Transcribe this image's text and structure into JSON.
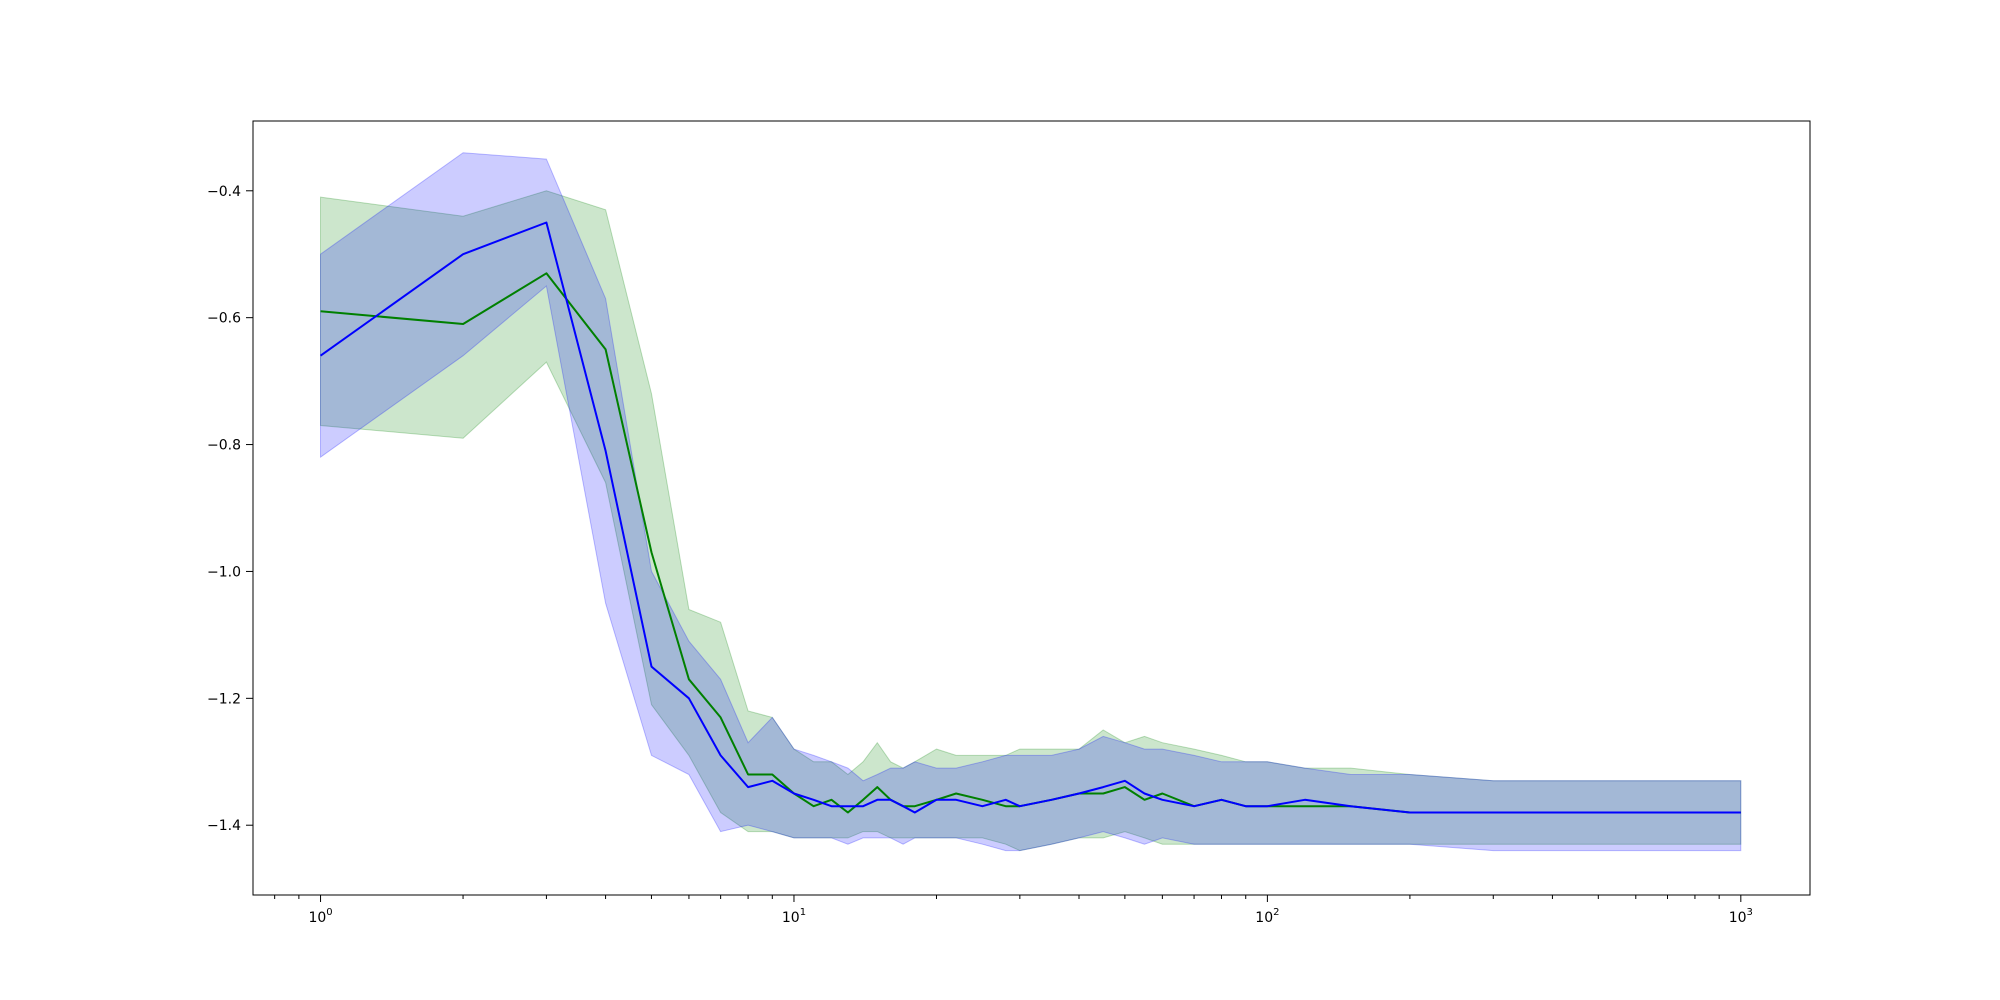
{
  "chart_data": {
    "type": "line",
    "title": "",
    "xlabel": "",
    "ylabel": "",
    "xscale": "log",
    "xlim": [
      0.72,
      1400
    ],
    "ylim": [
      -1.51,
      -0.29
    ],
    "grid": false,
    "legend": "none",
    "x_ticks": [
      {
        "base": "10",
        "exp": "0",
        "value": 1
      },
      {
        "base": "10",
        "exp": "1",
        "value": 10
      },
      {
        "base": "10",
        "exp": "2",
        "value": 100
      },
      {
        "base": "10",
        "exp": "3",
        "value": 1000
      }
    ],
    "y_ticks": [
      {
        "label": "−0.4",
        "value": -0.4
      },
      {
        "label": "−0.6",
        "value": -0.6
      },
      {
        "label": "−0.8",
        "value": -0.8
      },
      {
        "label": "−1.0",
        "value": -1.0
      },
      {
        "label": "−1.2",
        "value": -1.2
      },
      {
        "label": "−1.4",
        "value": -1.4
      }
    ],
    "series": [
      {
        "color": "#008000",
        "band_color": "#008000",
        "band_opacity": 0.2,
        "x": [
          1,
          2,
          3,
          4,
          5,
          6,
          7,
          8,
          9,
          10,
          11,
          12,
          13,
          14,
          15,
          16,
          17,
          18,
          20,
          22,
          25,
          28,
          30,
          35,
          40,
          45,
          50,
          55,
          60,
          70,
          80,
          90,
          100,
          120,
          150,
          200,
          300,
          500,
          700,
          1000
        ],
        "mean": [
          -0.59,
          -0.61,
          -0.53,
          -0.65,
          -0.97,
          -1.17,
          -1.23,
          -1.32,
          -1.32,
          -1.35,
          -1.37,
          -1.36,
          -1.38,
          -1.36,
          -1.34,
          -1.36,
          -1.37,
          -1.37,
          -1.36,
          -1.35,
          -1.36,
          -1.37,
          -1.37,
          -1.36,
          -1.35,
          -1.35,
          -1.34,
          -1.36,
          -1.35,
          -1.37,
          -1.36,
          -1.37,
          -1.37,
          -1.37,
          -1.37,
          -1.38,
          -1.38,
          -1.38,
          -1.38,
          -1.38
        ],
        "upper": [
          -0.41,
          -0.44,
          -0.4,
          -0.43,
          -0.72,
          -1.06,
          -1.08,
          -1.22,
          -1.23,
          -1.28,
          -1.3,
          -1.3,
          -1.32,
          -1.3,
          -1.27,
          -1.3,
          -1.31,
          -1.3,
          -1.28,
          -1.29,
          -1.29,
          -1.29,
          -1.28,
          -1.28,
          -1.28,
          -1.25,
          -1.27,
          -1.26,
          -1.27,
          -1.28,
          -1.29,
          -1.3,
          -1.3,
          -1.31,
          -1.31,
          -1.32,
          -1.33,
          -1.33,
          -1.33,
          -1.33
        ],
        "lower": [
          -0.77,
          -0.79,
          -0.67,
          -0.86,
          -1.21,
          -1.29,
          -1.38,
          -1.41,
          -1.41,
          -1.42,
          -1.42,
          -1.42,
          -1.42,
          -1.41,
          -1.41,
          -1.42,
          -1.42,
          -1.42,
          -1.42,
          -1.42,
          -1.42,
          -1.43,
          -1.44,
          -1.43,
          -1.42,
          -1.42,
          -1.41,
          -1.42,
          -1.43,
          -1.43,
          -1.43,
          -1.43,
          -1.43,
          -1.43,
          -1.43,
          -1.43,
          -1.43,
          -1.43,
          -1.43,
          -1.43
        ]
      },
      {
        "color": "#0000ff",
        "band_color": "#0000ff",
        "band_opacity": 0.2,
        "x": [
          1,
          2,
          3,
          4,
          5,
          6,
          7,
          8,
          9,
          10,
          11,
          12,
          13,
          14,
          15,
          16,
          17,
          18,
          20,
          22,
          25,
          28,
          30,
          35,
          40,
          45,
          50,
          55,
          60,
          70,
          80,
          90,
          100,
          120,
          150,
          200,
          300,
          500,
          700,
          1000
        ],
        "mean": [
          -0.66,
          -0.5,
          -0.45,
          -0.81,
          -1.15,
          -1.2,
          -1.29,
          -1.34,
          -1.33,
          -1.35,
          -1.36,
          -1.37,
          -1.37,
          -1.37,
          -1.36,
          -1.36,
          -1.37,
          -1.38,
          -1.36,
          -1.36,
          -1.37,
          -1.36,
          -1.37,
          -1.36,
          -1.35,
          -1.34,
          -1.33,
          -1.35,
          -1.36,
          -1.37,
          -1.36,
          -1.37,
          -1.37,
          -1.36,
          -1.37,
          -1.38,
          -1.38,
          -1.38,
          -1.38,
          -1.38
        ],
        "upper": [
          -0.5,
          -0.34,
          -0.35,
          -0.57,
          -1.0,
          -1.11,
          -1.17,
          -1.27,
          -1.23,
          -1.28,
          -1.29,
          -1.3,
          -1.31,
          -1.33,
          -1.32,
          -1.31,
          -1.31,
          -1.3,
          -1.31,
          -1.31,
          -1.3,
          -1.29,
          -1.29,
          -1.29,
          -1.28,
          -1.26,
          -1.27,
          -1.28,
          -1.28,
          -1.29,
          -1.3,
          -1.3,
          -1.3,
          -1.31,
          -1.32,
          -1.32,
          -1.33,
          -1.33,
          -1.33,
          -1.33
        ],
        "lower": [
          -0.82,
          -0.66,
          -0.55,
          -1.05,
          -1.29,
          -1.32,
          -1.41,
          -1.4,
          -1.41,
          -1.42,
          -1.42,
          -1.42,
          -1.43,
          -1.42,
          -1.42,
          -1.42,
          -1.43,
          -1.42,
          -1.42,
          -1.42,
          -1.43,
          -1.44,
          -1.44,
          -1.43,
          -1.42,
          -1.41,
          -1.42,
          -1.43,
          -1.42,
          -1.43,
          -1.43,
          -1.43,
          -1.43,
          -1.43,
          -1.43,
          -1.43,
          -1.44,
          -1.44,
          -1.44,
          -1.44
        ]
      }
    ]
  }
}
